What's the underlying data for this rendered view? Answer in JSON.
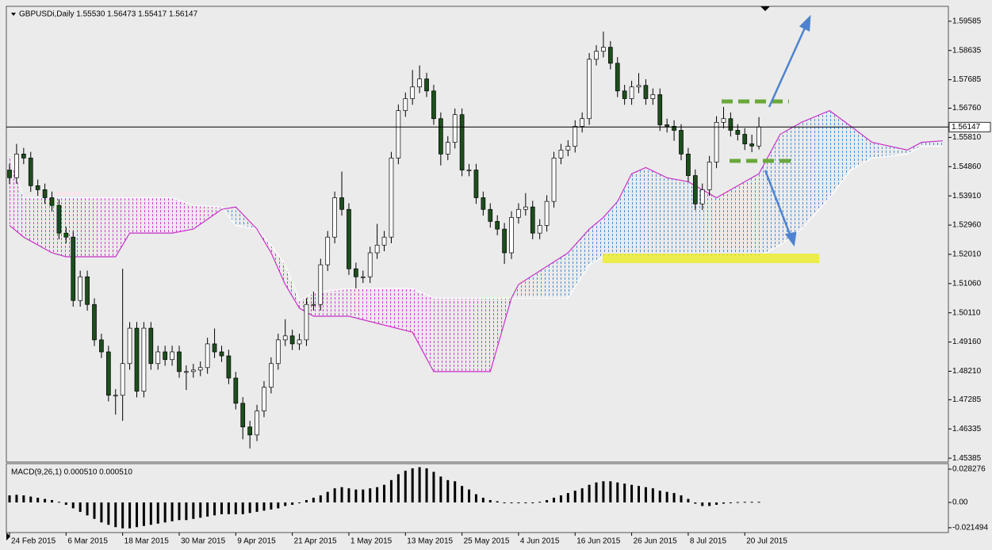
{
  "chart_data": {
    "type": "candlestick",
    "title": "GBPUSDi,Daily 1.55530 1.56473 1.55417 1.56147",
    "x": [
      0,
      1,
      2,
      3,
      4,
      5,
      6,
      7,
      8,
      9,
      10,
      11,
      12,
      13,
      14,
      15,
      16,
      17,
      18,
      19,
      20,
      21,
      22,
      23,
      24,
      25,
      26,
      27,
      28,
      29,
      30,
      31,
      32,
      33,
      34,
      35,
      36,
      37,
      38,
      39,
      40,
      41,
      42,
      43,
      44,
      45,
      46,
      47,
      48,
      49,
      50,
      51,
      52,
      53,
      54,
      55,
      56,
      57,
      58,
      59,
      60,
      61,
      62,
      63,
      64,
      65,
      66,
      67,
      68,
      69,
      70,
      71,
      72,
      73,
      74,
      75,
      76,
      77,
      78,
      79,
      80,
      81,
      82,
      83,
      84,
      85,
      86,
      87,
      88,
      89,
      90,
      91,
      92,
      93,
      94,
      95,
      96,
      97,
      98,
      99,
      100,
      101,
      102,
      103,
      104,
      105,
      106
    ],
    "open": [
      1.5475,
      1.545,
      1.5527,
      1.5514,
      1.5424,
      1.5411,
      1.5385,
      1.536,
      1.527,
      1.5257,
      1.5051,
      1.5128,
      1.5038,
      1.4923,
      1.4884,
      1.4743,
      1.4743,
      1.4846,
      1.4961,
      1.4756,
      1.4961,
      1.4846,
      1.4884,
      1.4859,
      1.4884,
      1.482,
      1.482,
      1.4825,
      1.4833,
      1.491,
      1.4884,
      1.4871,
      1.4799,
      1.4717,
      1.464,
      1.4614,
      1.4692,
      1.4769,
      1.4846,
      1.4923,
      1.4936,
      1.491,
      1.4923,
      1.5038,
      1.5038,
      1.5167,
      1.5257,
      1.5385,
      1.5347,
      1.5154,
      1.5128,
      1.5128,
      1.5206,
      1.5231,
      1.5257,
      1.5514,
      1.5668,
      1.5707,
      1.5745,
      1.5771,
      1.5732,
      1.5642,
      1.5527,
      1.5565,
      1.5655,
      1.5475,
      1.5475,
      1.5385,
      1.5347,
      1.5308,
      1.5283,
      1.5206,
      1.5321,
      1.5347,
      1.5355,
      1.527,
      1.5295,
      1.5373,
      1.5514,
      1.554,
      1.5552,
      1.5617,
      1.5642,
      1.5835,
      1.5861,
      1.5874,
      1.5822,
      1.5732,
      1.5707,
      1.5745,
      1.575,
      1.5707,
      1.572,
      1.5622,
      1.5617,
      1.5604,
      1.5527,
      1.5457,
      1.5365,
      1.5411,
      1.5501,
      1.563,
      1.5642,
      1.5604,
      1.5591,
      1.556,
      1.5553
    ],
    "high": [
      1.5495,
      1.556,
      1.5547,
      1.5534,
      1.5444,
      1.5431,
      1.5405,
      1.538,
      1.529,
      1.5277,
      1.5148,
      1.5148,
      1.5058,
      1.4943,
      1.4904,
      1.4763,
      1.5154,
      1.4981,
      1.4981,
      1.4981,
      1.4981,
      1.4904,
      1.4904,
      1.4904,
      1.4904,
      1.484,
      1.4845,
      1.4853,
      1.493,
      1.496,
      1.4904,
      1.4891,
      1.4819,
      1.4737,
      1.466,
      1.4712,
      1.4789,
      1.4866,
      1.4943,
      1.499,
      1.4956,
      1.4943,
      1.5058,
      1.508,
      1.5187,
      1.5277,
      1.5405,
      1.547,
      1.5367,
      1.5174,
      1.5148,
      1.5226,
      1.53,
      1.5277,
      1.5534,
      1.5688,
      1.5727,
      1.58,
      1.5815,
      1.5791,
      1.5752,
      1.5662,
      1.5585,
      1.5675,
      1.5675,
      1.5495,
      1.5495,
      1.5405,
      1.5367,
      1.5328,
      1.5303,
      1.5341,
      1.5367,
      1.54,
      1.5375,
      1.5315,
      1.5393,
      1.5534,
      1.556,
      1.5572,
      1.5637,
      1.5662,
      1.5855,
      1.5881,
      1.5925,
      1.5894,
      1.5842,
      1.5752,
      1.5765,
      1.579,
      1.577,
      1.574,
      1.574,
      1.5642,
      1.5637,
      1.5624,
      1.5547,
      1.5477,
      1.5431,
      1.5521,
      1.565,
      1.568,
      1.5662,
      1.5624,
      1.5611,
      1.559,
      1.5647
    ],
    "low": [
      1.543,
      1.543,
      1.5494,
      1.5404,
      1.5391,
      1.5365,
      1.534,
      1.525,
      1.5237,
      1.5031,
      1.5031,
      1.5018,
      1.4903,
      1.4864,
      1.4723,
      1.468,
      1.466,
      1.4826,
      1.4736,
      1.4736,
      1.4826,
      1.4826,
      1.4839,
      1.4839,
      1.48,
      1.476,
      1.48,
      1.4805,
      1.4813,
      1.4864,
      1.4851,
      1.4779,
      1.4697,
      1.46,
      1.457,
      1.4594,
      1.4672,
      1.4749,
      1.4826,
      1.4903,
      1.489,
      1.489,
      1.4903,
      1.5018,
      1.5018,
      1.5147,
      1.5237,
      1.5327,
      1.5134,
      1.509,
      1.5108,
      1.5108,
      1.5186,
      1.5211,
      1.5237,
      1.5494,
      1.5648,
      1.5687,
      1.5725,
      1.5712,
      1.5622,
      1.549,
      1.5507,
      1.5545,
      1.5455,
      1.5455,
      1.5365,
      1.5327,
      1.5288,
      1.5263,
      1.517,
      1.5186,
      1.5301,
      1.5327,
      1.525,
      1.525,
      1.5275,
      1.5353,
      1.5494,
      1.552,
      1.5532,
      1.5597,
      1.5622,
      1.5815,
      1.5841,
      1.5802,
      1.5712,
      1.5687,
      1.5687,
      1.5725,
      1.5687,
      1.5687,
      1.5602,
      1.5597,
      1.557,
      1.5507,
      1.5437,
      1.5345,
      1.5345,
      1.5391,
      1.5481,
      1.561,
      1.5584,
      1.5571,
      1.554,
      1.5533,
      1.5542
    ],
    "close": [
      1.545,
      1.5527,
      1.5514,
      1.5424,
      1.5411,
      1.5385,
      1.536,
      1.527,
      1.5257,
      1.5051,
      1.5128,
      1.5038,
      1.4923,
      1.4884,
      1.4743,
      1.4743,
      1.4846,
      1.4961,
      1.4756,
      1.4961,
      1.4846,
      1.4884,
      1.4859,
      1.4884,
      1.482,
      1.482,
      1.4825,
      1.4833,
      1.491,
      1.4884,
      1.4871,
      1.4799,
      1.4717,
      1.464,
      1.4614,
      1.4692,
      1.4769,
      1.4846,
      1.4923,
      1.4936,
      1.491,
      1.4923,
      1.5038,
      1.5038,
      1.5167,
      1.5257,
      1.5385,
      1.5347,
      1.5154,
      1.5128,
      1.5128,
      1.5206,
      1.5231,
      1.5257,
      1.5514,
      1.5668,
      1.5707,
      1.5745,
      1.5771,
      1.5732,
      1.5642,
      1.5527,
      1.5565,
      1.5655,
      1.5475,
      1.5475,
      1.5385,
      1.5347,
      1.5308,
      1.5283,
      1.5206,
      1.5321,
      1.5347,
      1.5355,
      1.527,
      1.5295,
      1.5373,
      1.5514,
      1.554,
      1.5552,
      1.5617,
      1.5642,
      1.5835,
      1.5861,
      1.5874,
      1.5822,
      1.5732,
      1.5707,
      1.5745,
      1.575,
      1.5707,
      1.572,
      1.5622,
      1.5617,
      1.5604,
      1.5527,
      1.5457,
      1.5365,
      1.5411,
      1.5501,
      1.563,
      1.5642,
      1.5604,
      1.5591,
      1.556,
      1.5553,
      1.5615
    ],
    "up_color": "#ffffff",
    "down_color": "#1d4f1d",
    "current_price": 1.56147,
    "xlim": [
      -0.45,
      132.8
    ],
    "ylim": [
      1.4526,
      1.6007
    ],
    "yticks": [
      1.59585,
      1.58635,
      1.57685,
      {
        "value": 1.5676,
        "label": "1.56760"
      },
      {
        "value": 1.5581,
        "label": "1.55810"
      },
      {
        "value": 1.5486,
        "label": "1.54860"
      },
      {
        "value": 1.5391,
        "label": "1.53910"
      },
      {
        "value": 1.5296,
        "label": "1.52960"
      },
      {
        "value": 1.5201,
        "label": "1.52010"
      },
      {
        "value": 1.5106,
        "label": "1.51060"
      },
      {
        "value": 1.5011,
        "label": "1.50110"
      },
      {
        "value": 1.4916,
        "label": "1.49160"
      },
      {
        "value": 1.4821,
        "label": "1.48210"
      },
      1.47285,
      1.46335,
      1.45385
    ],
    "xticks": [
      {
        "value": 0,
        "label": "24 Feb 2015"
      },
      {
        "value": 8,
        "label": "6 Mar 2015"
      },
      {
        "value": 16,
        "label": "18 Mar 2015"
      },
      {
        "value": 24,
        "label": "30 Mar 2015"
      },
      {
        "value": 32,
        "label": "9 Apr 2015"
      },
      {
        "value": 40,
        "label": "21 Apr 2015"
      },
      {
        "value": 48,
        "label": "1 May 2015"
      },
      {
        "value": 56,
        "label": "13 May 2015"
      },
      {
        "value": 64,
        "label": "25 May 2015"
      },
      {
        "value": 72,
        "label": "4 Jun 2015"
      },
      {
        "value": 80,
        "label": "16 Jun 2015"
      },
      {
        "value": 88,
        "label": "26 Jun 2015"
      },
      {
        "value": 96,
        "label": "8 Jul 2015"
      },
      {
        "value": 104,
        "label": "20 Jul 2015"
      }
    ],
    "cloud": {
      "x": [
        0,
        2,
        6,
        8,
        15,
        17,
        23,
        26,
        30,
        32,
        35,
        37,
        39,
        41,
        43,
        48,
        57,
        60,
        68,
        71,
        72,
        79,
        82,
        84,
        86,
        88,
        90,
        93,
        96,
        100,
        103,
        106,
        109,
        112,
        116,
        119,
        122,
        127,
        129,
        132
      ],
      "up_color": "#4a8fd6",
      "down_color": "#d43fd4",
      "series": [
        {
          "color": "#ffffff",
          "values": [
            1.5527,
            1.5385,
            1.5385,
            1.5385,
            1.5385,
            1.5385,
            1.5385,
            1.536,
            1.5355,
            1.5295,
            1.5283,
            1.5231,
            1.5167,
            1.5051,
            1.5077,
            1.509,
            1.509,
            1.5059,
            1.5059,
            1.5059,
            1.5059,
            1.5059,
            1.5167,
            1.5193,
            1.5193,
            1.5193,
            1.5193,
            1.5193,
            1.5193,
            1.5193,
            1.5193,
            1.5193,
            1.5231,
            1.5283,
            1.5385,
            1.5475,
            1.5514,
            1.5527,
            1.5552,
            1.5552
          ]
        },
        {
          "color": "#c832c8",
          "values": [
            1.5295,
            1.5257,
            1.5206,
            1.5193,
            1.5193,
            1.527,
            1.527,
            1.5283,
            1.5347,
            1.5355,
            1.5283,
            1.5206,
            1.5103,
            1.5026,
            1.5,
            1.5,
            1.4948,
            1.482,
            1.482,
            1.5059,
            1.5103,
            1.5206,
            1.5283,
            1.5321,
            1.5373,
            1.5463,
            1.5483,
            1.545,
            1.5437,
            1.5385,
            1.5424,
            1.5463,
            1.5591,
            1.563,
            1.5668,
            1.5617,
            1.5565,
            1.554,
            1.5565,
            1.557
          ]
        }
      ]
    },
    "macd": {
      "type": "bar",
      "title": "MACD(9,26,1) 0.000510 0.000510",
      "color": "#000000",
      "values": [
        0.006,
        0.0065,
        0.006,
        0.005,
        0.004,
        0.003,
        0.002,
        0.0005,
        -0.002,
        -0.005,
        -0.008,
        -0.011,
        -0.014,
        -0.017,
        -0.019,
        -0.021,
        -0.022,
        -0.022,
        -0.021,
        -0.02,
        -0.019,
        -0.018,
        -0.017,
        -0.016,
        -0.015,
        -0.015,
        -0.014,
        -0.013,
        -0.012,
        -0.011,
        -0.01,
        -0.01,
        -0.01,
        -0.01,
        -0.009,
        -0.008,
        -0.007,
        -0.006,
        -0.005,
        -0.003,
        -0.002,
        0,
        0.002,
        0.004,
        0.006,
        0.009,
        0.012,
        0.013,
        0.012,
        0.011,
        0.011,
        0.012,
        0.013,
        0.015,
        0.019,
        0.024,
        0.027,
        0.029,
        0.03,
        0.029,
        0.026,
        0.022,
        0.019,
        0.018,
        0.014,
        0.011,
        0.007,
        0.004,
        0.002,
        0.001,
        -0.0005,
        -0.0005,
        -0.0005,
        -0.0005,
        -0.0005,
        0.0005,
        0.002,
        0.004,
        0.006,
        0.008,
        0.01,
        0.012,
        0.015,
        0.017,
        0.018,
        0.018,
        0.017,
        0.016,
        0.015,
        0.014,
        0.013,
        0.012,
        0.01,
        0.009,
        0.008,
        0.006,
        0.003,
        -0.001,
        -0.003,
        -0.003,
        -0.002,
        -0.001,
        -0.0005,
        0.0003,
        0.0005,
        0.0005,
        0.00051
      ],
      "ylim": [
        -0.0256,
        0.033
      ],
      "yticks": [
        0.028276,
        {
          "value": 0,
          "label": "0.00"
        },
        -0.021494
      ]
    }
  }
}
